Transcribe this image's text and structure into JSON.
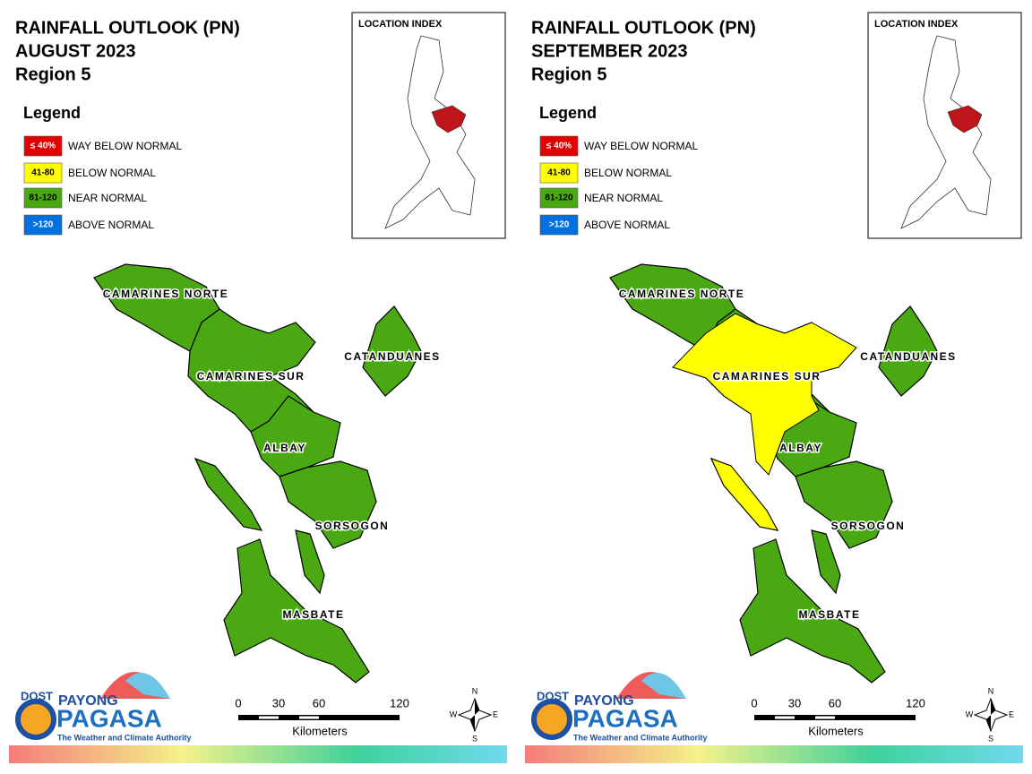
{
  "panels": [
    {
      "title_lines": [
        "RAINFALL OUTLOOK (PN)",
        "AUGUST 2023",
        "Region 5"
      ],
      "legend": {
        "title": "Legend",
        "items": [
          {
            "code": "≤ 40%",
            "label": "WAY BELOW NORMAL"
          },
          {
            "code": "41-80",
            "label": "BELOW NORMAL"
          },
          {
            "code": "81-120",
            "label": "NEAR NORMAL"
          },
          {
            "code": ">120",
            "label": "ABOVE NORMAL"
          }
        ]
      },
      "location_index": "LOCATION INDEX",
      "provinces": [
        "CAMARINES NORTE",
        "CATANDUANES",
        "CAMARINES SUR",
        "ALBAY",
        "SORSOGON",
        "MASBATE"
      ],
      "scale": {
        "labels": [
          "0",
          "30",
          "60",
          "120"
        ],
        "unit": "Kilometers"
      },
      "compass": [
        "N",
        "E",
        "S",
        "W"
      ],
      "logo": {
        "dost": "DOST",
        "payong": "PAYONG",
        "pagasa": "PAGASA",
        "tagline": "The Weather and Climate Authority"
      }
    },
    {
      "title_lines": [
        "RAINFALL OUTLOOK (PN)",
        "SEPTEMBER 2023",
        "Region 5"
      ],
      "legend": {
        "title": "Legend",
        "items": [
          {
            "code": "≤ 40%",
            "label": "WAY BELOW NORMAL"
          },
          {
            "code": "41-80",
            "label": "BELOW NORMAL"
          },
          {
            "code": "81-120",
            "label": "NEAR NORMAL"
          },
          {
            "code": ">120",
            "label": "ABOVE NORMAL"
          }
        ]
      },
      "location_index": "LOCATION INDEX",
      "provinces": [
        "CAMARINES NORTE",
        "CATANDUANES",
        "CAMARINES SUR",
        "ALBAY",
        "SORSOGON",
        "MASBATE"
      ],
      "scale": {
        "labels": [
          "0",
          "30",
          "60",
          "120"
        ],
        "unit": "Kilometers"
      },
      "compass": [
        "N",
        "E",
        "S",
        "W"
      ],
      "logo": {
        "dost": "DOST",
        "payong": "PAYONG",
        "pagasa": "PAGASA",
        "tagline": "The Weather and Climate Authority"
      }
    }
  ]
}
